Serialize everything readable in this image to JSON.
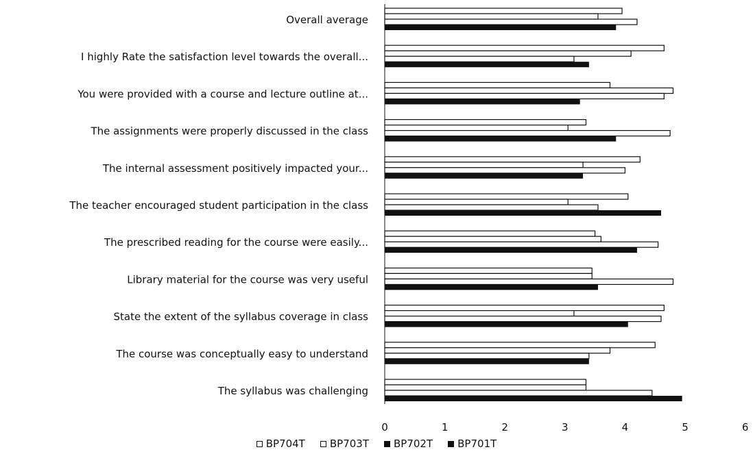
{
  "chart_data": {
    "type": "bar",
    "orientation": "horizontal",
    "title": "",
    "xlabel": "",
    "ylabel": "",
    "xlim": [
      0,
      6
    ],
    "xticks": [
      "0",
      "1",
      "2",
      "3",
      "4",
      "5",
      "6"
    ],
    "grid": false,
    "legend_position": "bottom",
    "categories": [
      "Overall average",
      "I highly Rate the satisfaction level towards the overall...",
      "You were provided with a course and lecture outline at...",
      "The assignments were properly discussed in the class",
      "The internal assessment positively impacted your...",
      "The teacher encouraged student participation in the class",
      "The prescribed reading for the course were easily...",
      "Library material for the course was very useful",
      "State the extent of the syllabus coverage in class",
      "The course was conceptually easy to understand",
      "The syllabus was challenging"
    ],
    "series": [
      {
        "name": "BP704T",
        "style": "hollow",
        "color": "#111111",
        "values": [
          3.95,
          4.65,
          3.75,
          3.35,
          4.25,
          4.05,
          3.5,
          3.45,
          4.65,
          4.5,
          3.35
        ]
      },
      {
        "name": "BP703T",
        "style": "hollow",
        "color": "#111111",
        "values": [
          3.55,
          4.1,
          4.8,
          3.05,
          3.3,
          3.05,
          3.6,
          3.45,
          3.15,
          3.75,
          3.35
        ]
      },
      {
        "name": "BP702T",
        "style": "hollow",
        "color": "#111111",
        "values": [
          4.2,
          3.15,
          4.65,
          4.75,
          4.0,
          3.55,
          4.55,
          4.8,
          4.6,
          3.4,
          4.45
        ]
      },
      {
        "name": "BP701T",
        "style": "solid",
        "color": "#111111",
        "values": [
          3.85,
          3.4,
          3.25,
          3.85,
          3.3,
          4.6,
          4.2,
          3.55,
          4.05,
          3.4,
          4.95
        ]
      }
    ]
  },
  "legend": {
    "items": [
      {
        "marker": "◘",
        "label": "BP704T"
      },
      {
        "marker": "□",
        "label": "BP703T"
      },
      {
        "marker": "■",
        "label": "BP702T"
      },
      {
        "marker": "■",
        "label": "BP701T"
      }
    ]
  }
}
